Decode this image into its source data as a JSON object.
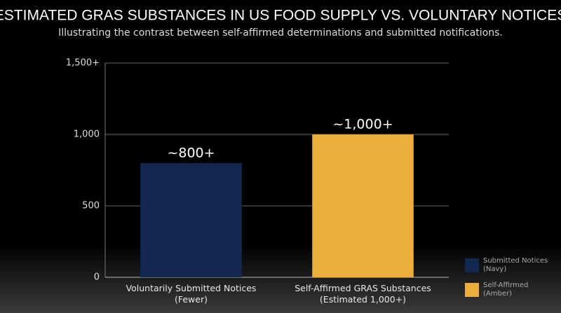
{
  "chart_data": {
    "type": "bar",
    "title": "ESTIMATED GRAS SUBSTANCES IN US FOOD SUPPLY VS. VOLUNTARY NOTICES",
    "subtitle": "Illustrating the contrast between self-affirmed determinations and submitted notifications.",
    "categories": [
      "Voluntarily Submitted Notices\n(Fewer)",
      "Self-Affirmed GRAS Substances\n(Estimated 1,000+)"
    ],
    "values": [
      800,
      1000
    ],
    "value_labels": [
      "~800+",
      "~1,000+"
    ],
    "colors": [
      "#13284f",
      "#ebae3b"
    ],
    "ylim": [
      0,
      1500
    ],
    "yticks": [
      0,
      500,
      {
        "value": 1000,
        "label": "1,000"
      },
      {
        "value": 1500,
        "label": "1,500+"
      }
    ],
    "grid": true,
    "legend_position": "bottom-right",
    "legend": [
      {
        "label": "Submitted Notices\n(Navy)",
        "color": "#13284f"
      },
      {
        "label": "Self-Affirmed\n(Amber)",
        "color": "#ebae3b"
      }
    ]
  }
}
